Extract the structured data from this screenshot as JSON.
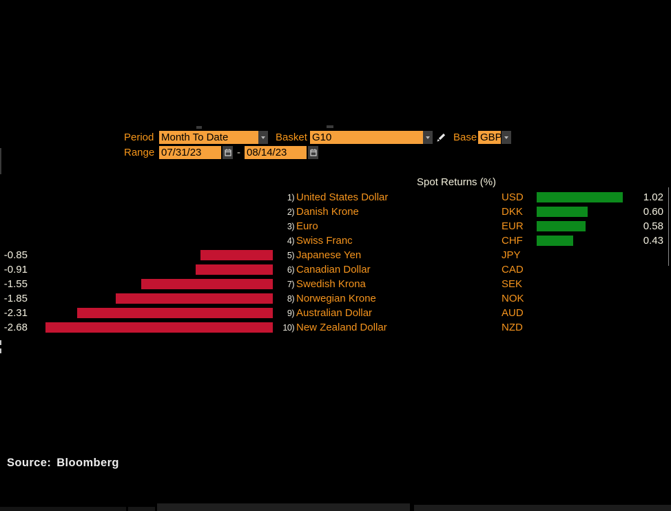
{
  "controls": {
    "period": {
      "label": "Period",
      "value": "Month To Date"
    },
    "basket": {
      "label": "Basket",
      "value": "G10"
    },
    "base": {
      "label": "Base",
      "value": "GBP"
    },
    "range": {
      "label": "Range",
      "start": "07/31/23",
      "separator": "-",
      "end": "08/14/23"
    },
    "icons": {
      "dropdown_arrow": "triangle-down",
      "calendar": "calendar-grid",
      "pencil": "pencil"
    }
  },
  "chart_data": {
    "type": "bar",
    "orientation": "horizontal",
    "title": "Spot Returns (%)",
    "value_unit": "%",
    "legend": "none",
    "bar_colors": {
      "positive": "#0c8a1c",
      "negative": "#c41431"
    },
    "rows": [
      {
        "rank": "1)",
        "name": "United States Dollar",
        "code": "USD",
        "value": 1.02
      },
      {
        "rank": "2)",
        "name": "Danish Krone",
        "code": "DKK",
        "value": 0.6
      },
      {
        "rank": "3)",
        "name": "Euro",
        "code": "EUR",
        "value": 0.58
      },
      {
        "rank": "4)",
        "name": "Swiss Franc",
        "code": "CHF",
        "value": 0.43
      },
      {
        "rank": "5)",
        "name": "Japanese Yen",
        "code": "JPY",
        "value": -0.85
      },
      {
        "rank": "6)",
        "name": "Canadian Dollar",
        "code": "CAD",
        "value": -0.91
      },
      {
        "rank": "7)",
        "name": "Swedish Krona",
        "code": "SEK",
        "value": -1.55
      },
      {
        "rank": "8)",
        "name": "Norwegian Krone",
        "code": "NOK",
        "value": -1.85
      },
      {
        "rank": "9)",
        "name": "Australian Dollar",
        "code": "AUD",
        "value": -2.31
      },
      {
        "rank": "10)",
        "name": "New Zealand Dollar",
        "code": "NZD",
        "value": -2.68
      }
    ]
  },
  "accent": {
    "label_orange": "#f79619",
    "field_orange": "#f7a13b"
  },
  "source": "Source: Bloomberg"
}
